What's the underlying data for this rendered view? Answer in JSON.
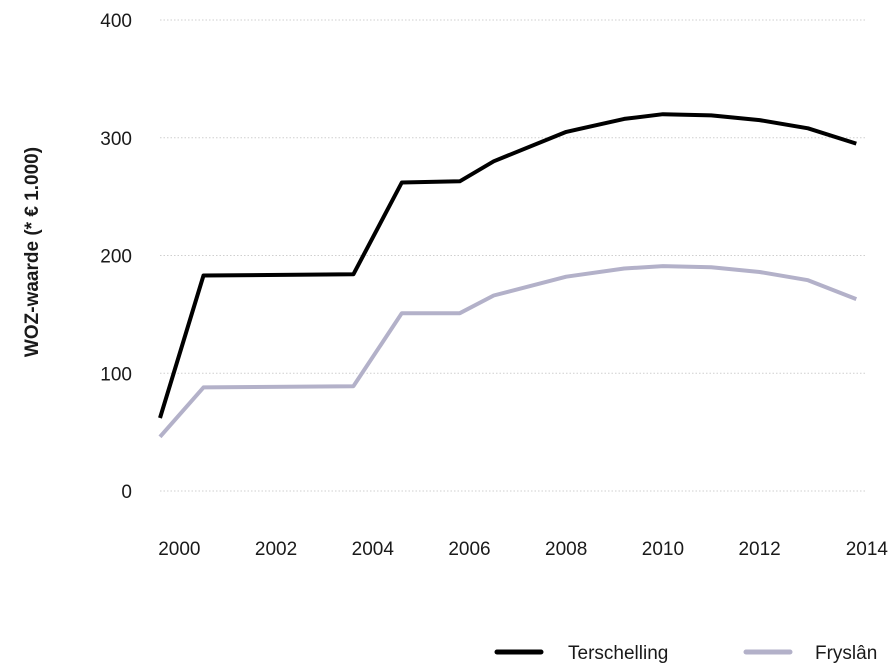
{
  "chart_data": {
    "type": "line",
    "title": "",
    "xlabel": "",
    "ylabel": "WOZ-waarde (* € 1.000)",
    "xlim": [
      1999.6,
      2014.2
    ],
    "ylim": [
      0,
      400
    ],
    "x_ticks": [
      2000,
      2002,
      2004,
      2006,
      2008,
      2010,
      2012,
      2014
    ],
    "y_ticks": [
      0,
      100,
      200,
      300,
      400
    ],
    "grid": true,
    "legend_position": "bottom-right",
    "series": [
      {
        "name": "Terschelling",
        "color": "#000000",
        "x": [
          1999.6,
          2000.5,
          2003.6,
          2004.6,
          2005.8,
          2006.5,
          2008,
          2009.2,
          2010,
          2011,
          2012,
          2013,
          2014
        ],
        "y": [
          62,
          183,
          184,
          262,
          263,
          280,
          305,
          316,
          320,
          319,
          315,
          308,
          295
        ]
      },
      {
        "name": "Fryslân",
        "color": "#b3b1c9",
        "x": [
          1999.6,
          2000.5,
          2003.6,
          2004.6,
          2005.8,
          2006.5,
          2008,
          2009.2,
          2010,
          2011,
          2012,
          2013,
          2014
        ],
        "y": [
          46,
          88,
          89,
          151,
          151,
          166,
          182,
          189,
          191,
          190,
          186,
          179,
          163
        ]
      }
    ]
  }
}
